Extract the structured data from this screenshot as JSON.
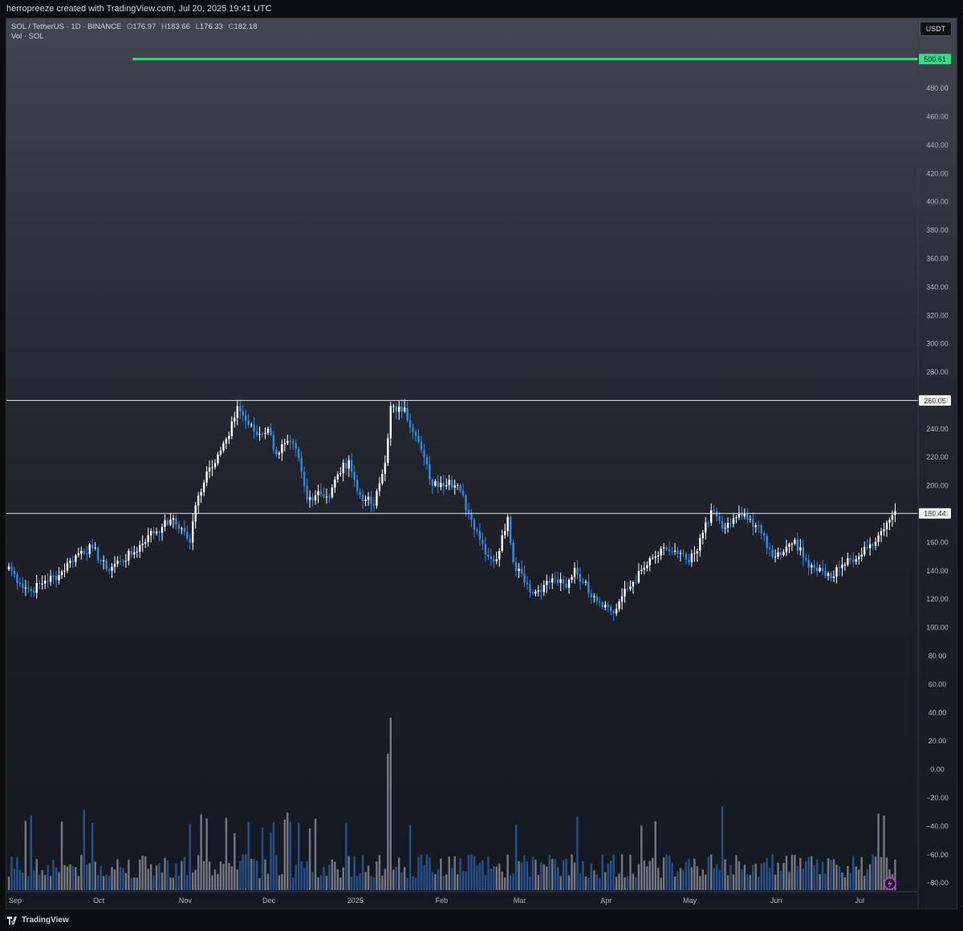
{
  "header": {
    "attribution": "herropreeze created with TradingView.com, Jul 20, 2025 19:41 UTC"
  },
  "legend": {
    "symbol": "SOL / TetherUS · 1D · BINANCE",
    "open_label": "O",
    "open": "176.97",
    "high_label": "H",
    "high": "183.66",
    "low_label": "L",
    "low": "176.33",
    "close_label": "C",
    "close": "182.18",
    "volume": "Vol · SOL"
  },
  "currency": "USDT",
  "footer": {
    "brand": "TradingView"
  },
  "colors": {
    "up": "#ffffff",
    "down": "#2f8be5",
    "level_line": "#e8e9ec",
    "target_line": "#2ee07f",
    "vol_up": "#868993",
    "vol_down": "#2b5aa0"
  },
  "chart_data": {
    "type": "candlestick",
    "symbol": "SOL / TetherUS",
    "interval": "1D",
    "exchange": "BINANCE",
    "y_axis": {
      "ticks": [
        "−80.00",
        "−60.00",
        "−40.00",
        "−20.00",
        "0.00",
        "20.00",
        "40.00",
        "60.00",
        "80.00",
        "100.00",
        "120.00",
        "140.00",
        "160.00",
        "180.00",
        "200.00",
        "220.00",
        "240.00",
        "260.00",
        "280.00",
        "300.00",
        "320.00",
        "340.00",
        "360.00",
        "380.00",
        "400.00",
        "420.00",
        "440.00",
        "460.00",
        "480.00"
      ],
      "tick_values": [
        -80,
        -60,
        -40,
        -20,
        0,
        20,
        40,
        60,
        80,
        100,
        120,
        140,
        160,
        180,
        200,
        220,
        240,
        260,
        280,
        300,
        320,
        340,
        360,
        380,
        400,
        420,
        440,
        460,
        480
      ],
      "range": [
        -85,
        510
      ]
    },
    "x_axis": {
      "labels": [
        "Sep",
        "Oct",
        "Nov",
        "Dec",
        "2025",
        "Feb",
        "Mar",
        "Apr",
        "May",
        "Jun",
        "Jul"
      ],
      "label_days": [
        0,
        30,
        61,
        91,
        122,
        153,
        181,
        212,
        242,
        273,
        303
      ]
    },
    "horizontal_levels": [
      {
        "value": 500.61,
        "label": "500.61",
        "role": "target",
        "start_day": 45
      },
      {
        "value": 260.05,
        "label": "260.05",
        "role": "resistance",
        "start_day": -1
      },
      {
        "value": 180.44,
        "label": "180.44",
        "role": "support",
        "start_day": -1
      }
    ],
    "close_anchors": [
      [
        0,
        143
      ],
      [
        4,
        131
      ],
      [
        8,
        126
      ],
      [
        13,
        133
      ],
      [
        18,
        137
      ],
      [
        22,
        147
      ],
      [
        26,
        154
      ],
      [
        30,
        156
      ],
      [
        35,
        141
      ],
      [
        40,
        147
      ],
      [
        45,
        153
      ],
      [
        50,
        165
      ],
      [
        55,
        171
      ],
      [
        58,
        176
      ],
      [
        62,
        170
      ],
      [
        65,
        160
      ],
      [
        67,
        186
      ],
      [
        71,
        210
      ],
      [
        75,
        222
      ],
      [
        79,
        235
      ],
      [
        82,
        256
      ],
      [
        86,
        243
      ],
      [
        89,
        236
      ],
      [
        93,
        240
      ],
      [
        96,
        222
      ],
      [
        99,
        230
      ],
      [
        103,
        226
      ],
      [
        107,
        190
      ],
      [
        111,
        196
      ],
      [
        115,
        192
      ],
      [
        118,
        208
      ],
      [
        122,
        218
      ],
      [
        125,
        196
      ],
      [
        128,
        190
      ],
      [
        131,
        186
      ],
      [
        135,
        216
      ],
      [
        137,
        256
      ],
      [
        139,
        252
      ],
      [
        142,
        255
      ],
      [
        145,
        238
      ],
      [
        148,
        225
      ],
      [
        152,
        200
      ],
      [
        155,
        202
      ],
      [
        158,
        204
      ],
      [
        162,
        196
      ],
      [
        165,
        180
      ],
      [
        168,
        168
      ],
      [
        172,
        150
      ],
      [
        175,
        148
      ],
      [
        179,
        178
      ],
      [
        181,
        146
      ],
      [
        184,
        138
      ],
      [
        188,
        124
      ],
      [
        192,
        130
      ],
      [
        196,
        134
      ],
      [
        200,
        128
      ],
      [
        203,
        142
      ],
      [
        206,
        132
      ],
      [
        210,
        122
      ],
      [
        214,
        116
      ],
      [
        217,
        110
      ],
      [
        220,
        122
      ],
      [
        224,
        132
      ],
      [
        228,
        142
      ],
      [
        232,
        150
      ],
      [
        236,
        155
      ],
      [
        240,
        152
      ],
      [
        244,
        146
      ],
      [
        247,
        154
      ],
      [
        250,
        174
      ],
      [
        253,
        182
      ],
      [
        256,
        170
      ],
      [
        259,
        173
      ],
      [
        262,
        180
      ],
      [
        265,
        176
      ],
      [
        269,
        172
      ],
      [
        272,
        156
      ],
      [
        275,
        150
      ],
      [
        279,
        157
      ],
      [
        282,
        162
      ],
      [
        285,
        149
      ],
      [
        288,
        144
      ],
      [
        292,
        140
      ],
      [
        295,
        135
      ],
      [
        298,
        142
      ],
      [
        302,
        148
      ],
      [
        305,
        150
      ],
      [
        308,
        156
      ],
      [
        312,
        165
      ],
      [
        315,
        174
      ],
      [
        318,
        182
      ]
    ],
    "volume_description": "daily volume bars at bottom pane, spike near mid-January"
  }
}
